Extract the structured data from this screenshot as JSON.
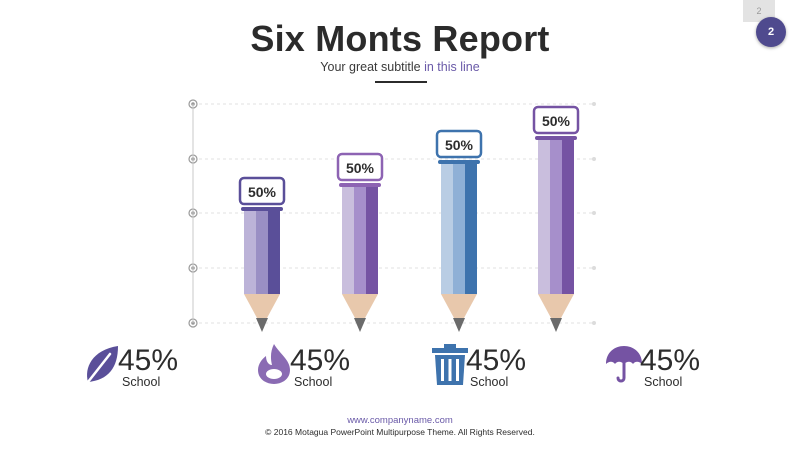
{
  "slide": {
    "number_tab": "2",
    "number_badge": "2"
  },
  "header": {
    "title": "Six Monts Report",
    "subtitle_main": "Your great subtitle",
    "subtitle_accent": "in this line"
  },
  "colors": {
    "purple_dark": "#7553a3",
    "purple_light": "#c9bedd",
    "blue_dark": "#3e73ad",
    "blue_light": "#b9cde4",
    "indigo": "#5a4f99",
    "wood": "#e8c8ac",
    "lead": "#6b6b6b",
    "axis": "#c8c8c8"
  },
  "chart_data": {
    "type": "bar",
    "categories": [
      "",
      "",
      "",
      ""
    ],
    "values": [
      50,
      50,
      50,
      50
    ],
    "series": [
      {
        "values": [
          50,
          50,
          50,
          50
        ],
        "labels": [
          "50%",
          "50%",
          "50%",
          "50%"
        ]
      }
    ],
    "title": "",
    "xlabel": "",
    "ylabel": ""
  },
  "stats": [
    {
      "icon": "leaf-icon",
      "value": "45%",
      "label": "School"
    },
    {
      "icon": "flame-icon",
      "value": "45%",
      "label": "School"
    },
    {
      "icon": "trash-icon",
      "value": "45%",
      "label": "School"
    },
    {
      "icon": "umbrella-icon",
      "value": "45%",
      "label": "School"
    }
  ],
  "footer": {
    "url": "www.companyname.com",
    "copyright": "© 2016 Motagua PowerPoint Multipurpose Theme. All Rights Reserved."
  }
}
